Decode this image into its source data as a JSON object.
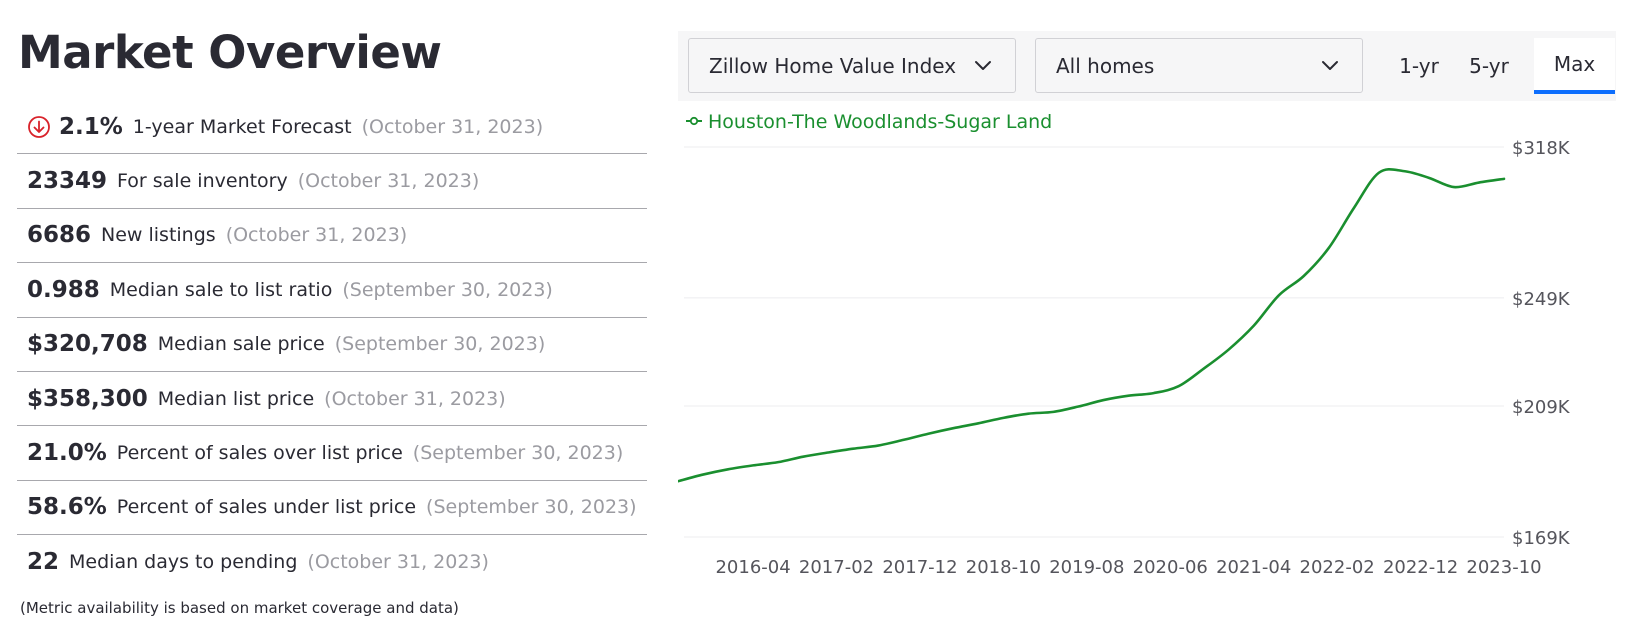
{
  "page_title": "Market Overview",
  "metrics": [
    {
      "value": "2.1%",
      "label": "1-year Market Forecast",
      "date": "(October 31, 2023)",
      "icon": "arrow-down-circle-icon"
    },
    {
      "value": "23349",
      "label": "For sale inventory",
      "date": "(October 31, 2023)"
    },
    {
      "value": "6686",
      "label": "New listings",
      "date": "(October 31, 2023)"
    },
    {
      "value": "0.988",
      "label": "Median sale to list ratio",
      "date": "(September 30, 2023)"
    },
    {
      "value": "$320,708",
      "label": "Median sale price",
      "date": "(September 30, 2023)"
    },
    {
      "value": "$358,300",
      "label": "Median list price",
      "date": "(October 31, 2023)"
    },
    {
      "value": "21.0%",
      "label": "Percent of sales over list price",
      "date": "(September 30, 2023)"
    },
    {
      "value": "58.6%",
      "label": "Percent of sales under list price",
      "date": "(September 30, 2023)"
    },
    {
      "value": "22",
      "label": "Median days to pending",
      "date": "(October 31, 2023)"
    }
  ],
  "footnote": "(Metric availability is based on market coverage and data)",
  "toolbar": {
    "metric_select": "Zillow Home Value Index",
    "home_type_select": "All homes",
    "ranges": [
      "1-yr",
      "5-yr",
      "Max"
    ],
    "active_range": "Max"
  },
  "colors": {
    "series": "#1a8f2f",
    "active_tab": "#0d6efd",
    "forecast_down": "#d9232b"
  },
  "chart_data": {
    "type": "line",
    "title": "",
    "xlabel": "",
    "ylabel": "",
    "legend_position": "top-left",
    "grid": true,
    "y_scale": "log",
    "y_ticks": [
      {
        "value": 169000,
        "label": "$169K"
      },
      {
        "value": 209000,
        "label": "$209K"
      },
      {
        "value": 249000,
        "label": "$249K"
      },
      {
        "value": 318000,
        "label": "$318K"
      }
    ],
    "ylim": [
      169000,
      318000
    ],
    "x_ticks": [
      "2016-04",
      "2017-02",
      "2017-12",
      "2018-10",
      "2019-08",
      "2020-06",
      "2021-04",
      "2022-02",
      "2022-12",
      "2023-10"
    ],
    "xlim": [
      "2015-07",
      "2023-10"
    ],
    "series": [
      {
        "name": "Houston-The Woodlands-Sugar Land",
        "points": [
          [
            "2015-07",
            185000
          ],
          [
            "2015-10",
            187000
          ],
          [
            "2016-01",
            188600
          ],
          [
            "2016-04",
            189800
          ],
          [
            "2016-07",
            190800
          ],
          [
            "2016-10",
            192500
          ],
          [
            "2017-01",
            193800
          ],
          [
            "2017-04",
            195000
          ],
          [
            "2017-07",
            196000
          ],
          [
            "2017-10",
            197800
          ],
          [
            "2018-01",
            199800
          ],
          [
            "2018-04",
            201600
          ],
          [
            "2018-07",
            203200
          ],
          [
            "2018-10",
            205000
          ],
          [
            "2019-01",
            206400
          ],
          [
            "2019-04",
            207000
          ],
          [
            "2019-07",
            208800
          ],
          [
            "2019-10",
            211000
          ],
          [
            "2020-01",
            212500
          ],
          [
            "2020-04",
            213400
          ],
          [
            "2020-07",
            215800
          ],
          [
            "2020-10",
            222000
          ],
          [
            "2021-01",
            229000
          ],
          [
            "2021-04",
            238000
          ],
          [
            "2021-07",
            250000
          ],
          [
            "2021-10",
            258000
          ],
          [
            "2022-01",
            270000
          ],
          [
            "2022-04",
            288000
          ],
          [
            "2022-07",
            305000
          ],
          [
            "2022-10",
            305800
          ],
          [
            "2023-01",
            302500
          ],
          [
            "2023-04",
            298000
          ],
          [
            "2023-07",
            300200
          ],
          [
            "2023-10",
            302000
          ]
        ]
      }
    ]
  }
}
